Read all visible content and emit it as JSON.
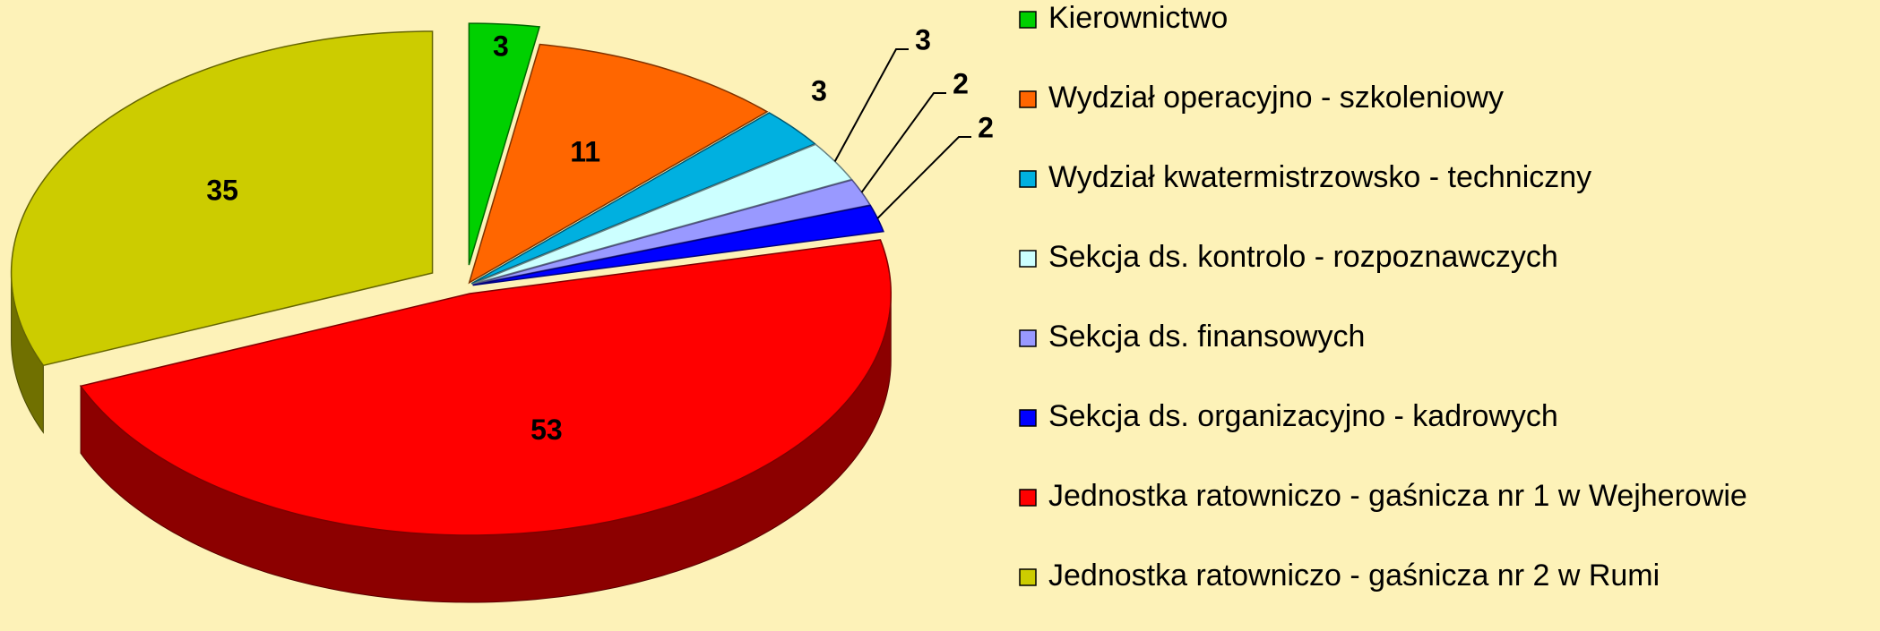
{
  "chart_data": {
    "type": "pie",
    "categories": [
      "Kierownictwo",
      "Wydział operacyjno - szkoleniowy",
      "Wydział kwatermistrzowsko - techniczny",
      "Sekcja ds. kontrolo - rozpoznawczych",
      "Sekcja ds. finansowych",
      "Sekcja ds. organizacyjno - kadrowych",
      "Jednostka ratowniczo - gaśnicza nr 1 w Wejherowie",
      "Jednostka ratowniczo - gaśnicza nr 2 w Rumi"
    ],
    "values": [
      3,
      11,
      3,
      3,
      2,
      2,
      53,
      35
    ],
    "colors": [
      "#00d000",
      "#ff6600",
      "#00b0e0",
      "#ccffff",
      "#9999ff",
      "#0000ff",
      "#ff0000",
      "#cccc00"
    ],
    "legend": "right"
  }
}
